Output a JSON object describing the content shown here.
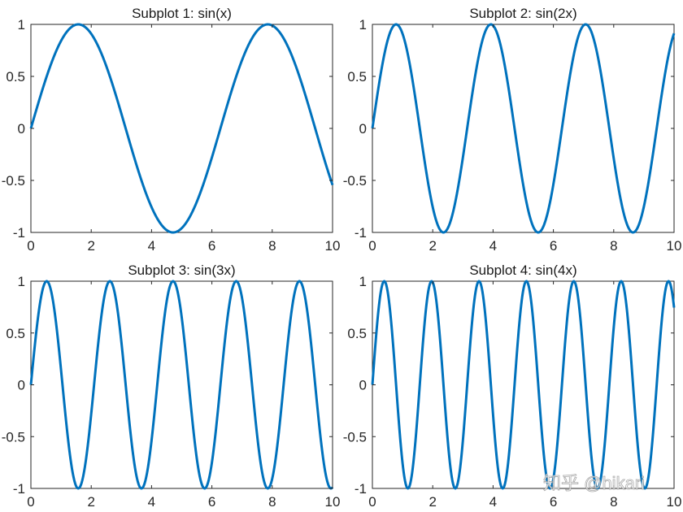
{
  "figure": {
    "background": "#ffffff",
    "line_color": "#0072BD",
    "axes_color": "#262626",
    "watermark": "知乎 @hikari"
  },
  "chart_data": [
    {
      "type": "line",
      "title": "Subplot 1: sin(x)",
      "function": "sin(x)",
      "freq": 1,
      "xlabel": "",
      "ylabel": "",
      "xlim": [
        0,
        10
      ],
      "ylim": [
        -1,
        1
      ],
      "xticks": [
        "0",
        "2",
        "4",
        "6",
        "8",
        "10"
      ],
      "yticks": [
        "1",
        "0.5",
        "0",
        "-0.5",
        "-1"
      ],
      "grid": false,
      "series": [
        {
          "name": "sin(x)",
          "x": [
            0,
            1,
            2,
            3,
            4,
            5,
            6,
            7,
            8,
            9,
            10
          ],
          "y": [
            0,
            0.841,
            0.909,
            0.141,
            -0.757,
            -0.959,
            -0.279,
            0.657,
            0.989,
            0.412,
            -0.544
          ]
        }
      ]
    },
    {
      "type": "line",
      "title": "Subplot 2: sin(2x)",
      "function": "sin(2x)",
      "freq": 2,
      "xlabel": "",
      "ylabel": "",
      "xlim": [
        0,
        10
      ],
      "ylim": [
        -1,
        1
      ],
      "xticks": [
        "0",
        "2",
        "4",
        "6",
        "8",
        "10"
      ],
      "yticks": [
        "1",
        "0.5",
        "0",
        "-0.5",
        "-1"
      ],
      "grid": false,
      "series": [
        {
          "name": "sin(2x)",
          "x": [
            0,
            1,
            2,
            3,
            4,
            5,
            6,
            7,
            8,
            9,
            10
          ],
          "y": [
            0,
            0.909,
            -0.757,
            -0.279,
            0.989,
            -0.544,
            -0.537,
            0.991,
            -0.288,
            -0.751,
            0.913
          ]
        }
      ]
    },
    {
      "type": "line",
      "title": "Subplot 3: sin(3x)",
      "function": "sin(3x)",
      "freq": 3,
      "xlabel": "",
      "ylabel": "",
      "xlim": [
        0,
        10
      ],
      "ylim": [
        -1,
        1
      ],
      "xticks": [
        "0",
        "2",
        "4",
        "6",
        "8",
        "10"
      ],
      "yticks": [
        "1",
        "0.5",
        "0",
        "-0.5",
        "-1"
      ],
      "grid": false,
      "series": [
        {
          "name": "sin(3x)",
          "x": [
            0,
            1,
            2,
            3,
            4,
            5,
            6,
            7,
            8,
            9,
            10
          ],
          "y": [
            0,
            0.141,
            -0.279,
            0.412,
            -0.537,
            0.65,
            -0.751,
            0.837,
            -0.906,
            0.956,
            -0.988
          ]
        }
      ]
    },
    {
      "type": "line",
      "title": "Subplot 4: sin(4x)",
      "function": "sin(4x)",
      "freq": 4,
      "xlabel": "",
      "ylabel": "",
      "xlim": [
        0,
        10
      ],
      "ylim": [
        -1,
        1
      ],
      "xticks": [
        "0",
        "2",
        "4",
        "6",
        "8",
        "10"
      ],
      "yticks": [
        "1",
        "0.5",
        "0",
        "-0.5",
        "-1"
      ],
      "grid": false,
      "series": [
        {
          "name": "sin(4x)",
          "x": [
            0,
            1,
            2,
            3,
            4,
            5,
            6,
            7,
            8,
            9,
            10
          ],
          "y": [
            0,
            -0.757,
            0.989,
            -0.537,
            -0.288,
            0.913,
            -0.906,
            0.271,
            0.551,
            -0.992,
            0.745
          ]
        }
      ]
    }
  ]
}
